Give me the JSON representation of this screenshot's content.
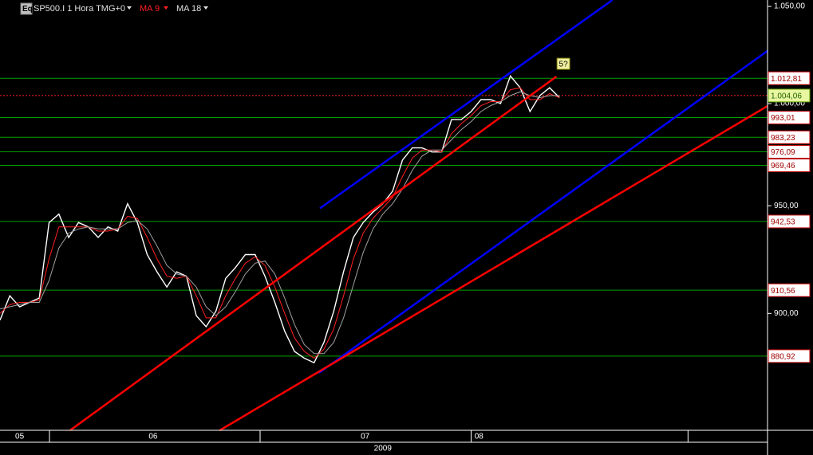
{
  "header": {
    "icon": "Eq"
  },
  "chart_data": {
    "type": "line",
    "title": "SP500.I 1 Hora TMG+0",
    "log_scale": true,
    "grid": false,
    "x": [
      0,
      1,
      2,
      3,
      4,
      5,
      6,
      7,
      8,
      9,
      10,
      11,
      12,
      13,
      14,
      15,
      16,
      17,
      18,
      19,
      20,
      21,
      22,
      23,
      24,
      25,
      26,
      27,
      28,
      29,
      30,
      31,
      32,
      33,
      34,
      35,
      36,
      37,
      38,
      39,
      40,
      41,
      42,
      43,
      44,
      45,
      46,
      47,
      48,
      49,
      50,
      51,
      52,
      53,
      54,
      55,
      56,
      57
    ],
    "xlim": [
      0,
      78.2
    ],
    "xticks": [
      5.04,
      26.5,
      48,
      70.1
    ],
    "month_labels": [
      {
        "value": 2,
        "label": "05"
      },
      {
        "value": 15.6,
        "label": "06"
      },
      {
        "value": 37.2,
        "label": "07"
      },
      {
        "value": 48.8,
        "label": "08"
      }
    ],
    "year_label": {
      "value": 39,
      "label": "2009"
    },
    "ylim": [
      848.7,
      1053.4
    ],
    "yticks": [
      {
        "value": 900,
        "label": "900,00"
      },
      {
        "value": 950,
        "label": "950,00"
      },
      {
        "value": 1000,
        "label": "1.000,00"
      },
      {
        "value": 1050,
        "label": "1.050,00"
      }
    ],
    "series": [
      {
        "color": "#ffffff",
        "values": [
          897,
          908,
          903,
          905,
          907,
          942,
          946,
          935,
          942,
          940,
          935,
          940,
          938,
          951,
          942,
          927,
          919,
          912,
          919,
          917,
          899,
          894,
          901,
          916,
          921,
          927,
          927,
          917,
          905,
          892,
          883,
          880,
          878,
          887,
          901,
          919,
          935,
          942,
          947,
          951,
          957,
          972,
          978,
          978,
          976,
          976,
          992,
          992,
          996,
          1002,
          1002,
          1000,
          1014,
          1008,
          996,
          1004,
          1008,
          1003
        ]
      },
      {
        "name": "MA 9",
        "color": "#ff2020",
        "values": [
          900,
          904,
          905,
          905,
          906,
          925,
          940,
          940,
          940,
          940,
          938,
          938,
          939,
          945,
          944,
          935,
          925,
          917,
          916,
          917,
          908,
          898,
          898,
          908,
          916,
          923,
          926,
          922,
          912,
          900,
          889,
          883,
          880,
          884,
          893,
          908,
          925,
          937,
          944,
          949,
          954,
          964,
          973,
          977,
          977,
          976,
          985,
          990,
          994,
          999,
          1001,
          1001,
          1007,
          1008,
          1002,
          1002,
          1005,
          1003
        ]
      },
      {
        "name": "MA 18",
        "color": "#a0a0a0",
        "values": [
          902,
          903,
          904,
          905,
          905,
          915,
          930,
          937,
          939,
          940,
          939,
          939,
          939,
          942,
          943,
          939,
          931,
          922,
          918,
          917,
          912,
          903,
          899,
          903,
          910,
          918,
          923,
          924,
          918,
          907,
          895,
          886,
          882,
          882,
          887,
          898,
          913,
          928,
          939,
          946,
          951,
          958,
          967,
          974,
          977,
          977,
          982,
          987,
          991,
          996,
          999,
          1001,
          1004,
          1006,
          1004,
          1003,
          1004,
          1004
        ]
      }
    ],
    "levels": {
      "color": "#00a000",
      "values": [
        1012.81,
        993.01,
        983.23,
        976.09,
        969.46,
        942.53,
        910.56,
        880.92
      ],
      "value_labels": [
        "1.012,81",
        "993,01",
        "983,23",
        "976,09",
        "969,46",
        "942,53",
        "910,56",
        "880,92"
      ]
    },
    "current": {
      "color": "#ff2020",
      "value": 1004.06,
      "label": "1.004,06"
    },
    "trendlines": [
      {
        "color": "#0000ff",
        "x": [
          32.6,
          62.4
        ],
        "values": [
          948.8,
          1053.4
        ]
      },
      {
        "color": "#ff0000",
        "x": [
          7.15,
          56.7
        ],
        "values": [
          848.7,
          1013.7
        ]
      },
      {
        "color": "#0000ff",
        "x": [
          32.5,
          78.2
        ],
        "values": [
          873.5,
          1026.8
        ]
      },
      {
        "color": "#ff0000",
        "x": [
          22.4,
          78.2
        ],
        "values": [
          848.7,
          998.8
        ]
      }
    ],
    "annotation": {
      "x": 57.4,
      "y": 1020.2,
      "text": "5?"
    }
  }
}
